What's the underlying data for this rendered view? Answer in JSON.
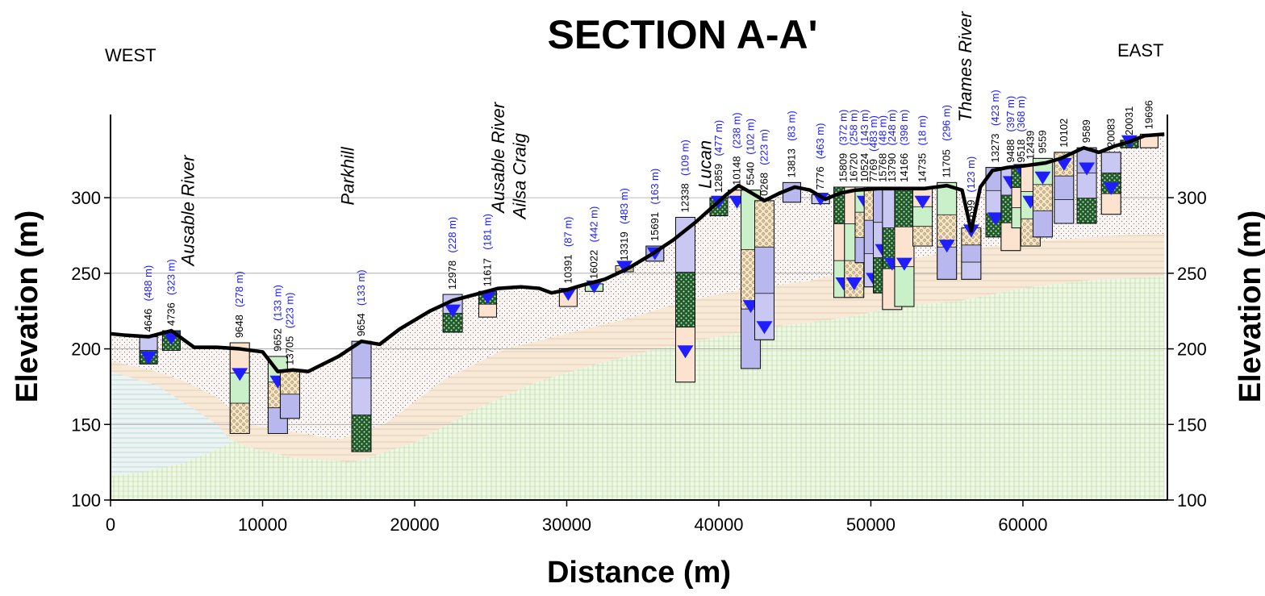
{
  "chart_data": {
    "type": "cross-section",
    "title": "SECTION A-A'",
    "west_label": "WEST",
    "east_label": "EAST",
    "xlabel": "Distance (m)",
    "ylabel": "Elevation (m)",
    "xlim": [
      0,
      69500
    ],
    "ylim": [
      100,
      355
    ],
    "x_ticks": [
      0,
      10000,
      20000,
      30000,
      40000,
      50000,
      60000
    ],
    "y_ticks": [
      100,
      150,
      200,
      250,
      300
    ],
    "grid": "horizontal",
    "surface": [
      [
        0,
        210
      ],
      [
        1000,
        209
      ],
      [
        2500,
        208
      ],
      [
        4000,
        212
      ],
      [
        5500,
        201
      ],
      [
        7000,
        201
      ],
      [
        8500,
        200
      ],
      [
        10000,
        198
      ],
      [
        11000,
        185
      ],
      [
        12000,
        186
      ],
      [
        13000,
        185
      ],
      [
        15000,
        195
      ],
      [
        16500,
        205
      ],
      [
        17700,
        203
      ],
      [
        19000,
        213
      ],
      [
        21000,
        225
      ],
      [
        22500,
        232
      ],
      [
        24000,
        236
      ],
      [
        25500,
        240
      ],
      [
        27000,
        241
      ],
      [
        28200,
        240
      ],
      [
        29000,
        237
      ],
      [
        30000,
        239
      ],
      [
        31000,
        242
      ],
      [
        32500,
        246
      ],
      [
        34000,
        253
      ],
      [
        35500,
        262
      ],
      [
        37000,
        272
      ],
      [
        38500,
        284
      ],
      [
        39500,
        293
      ],
      [
        40500,
        302
      ],
      [
        41300,
        308
      ],
      [
        42000,
        304
      ],
      [
        43000,
        298
      ],
      [
        44000,
        303
      ],
      [
        45000,
        307
      ],
      [
        46000,
        305
      ],
      [
        47000,
        299
      ],
      [
        48000,
        303
      ],
      [
        49000,
        305
      ],
      [
        50500,
        306
      ],
      [
        52000,
        306
      ],
      [
        53500,
        306
      ],
      [
        55000,
        308
      ],
      [
        56000,
        305
      ],
      [
        56600,
        278
      ],
      [
        57200,
        307
      ],
      [
        58000,
        318
      ],
      [
        59000,
        320
      ],
      [
        60000,
        321
      ],
      [
        61500,
        323
      ],
      [
        62500,
        326
      ],
      [
        64000,
        333
      ],
      [
        65000,
        330
      ],
      [
        66000,
        334
      ],
      [
        67000,
        337
      ],
      [
        68000,
        341
      ],
      [
        69300,
        342
      ]
    ],
    "boreholes": [
      {
        "id": "4646",
        "x": 2500,
        "top": 208,
        "bottom": 190,
        "distance": "(488 m)",
        "water": 194
      },
      {
        "id": "4736",
        "x": 4000,
        "top": 212,
        "bottom": 199,
        "distance": "(323 m)",
        "water": 207
      },
      {
        "id": "9648",
        "x": 8500,
        "top": 204,
        "bottom": 144,
        "distance": "(278 m)",
        "water": 183
      },
      {
        "id": "9652",
        "x": 11000,
        "top": 195,
        "bottom": 144,
        "distance": "(133 m)",
        "water": 178
      },
      {
        "id": "13705",
        "x": 11800,
        "top": 186,
        "bottom": 154,
        "distance": "(223 m)",
        "water": null
      },
      {
        "id": "9654",
        "x": 16500,
        "top": 205,
        "bottom": 132,
        "distance": "(133 m)",
        "water": null
      },
      {
        "id": "12978",
        "x": 22500,
        "top": 236,
        "bottom": 211,
        "distance": "(228 m)",
        "water": 225
      },
      {
        "id": "11617",
        "x": 24800,
        "top": 238,
        "bottom": 221,
        "distance": "(181 m)",
        "water": 234
      },
      {
        "id": "10391",
        "x": 30100,
        "top": 240,
        "bottom": 228,
        "distance": "(87 m)",
        "water": 236
      },
      {
        "id": "16022",
        "x": 31800,
        "top": 243,
        "bottom": 238,
        "distance": "(442 m)",
        "water": 241
      },
      {
        "id": "13319",
        "x": 33800,
        "top": 255,
        "bottom": 251,
        "distance": "(483 m)",
        "water": 254
      },
      {
        "id": "15691",
        "x": 35800,
        "top": 268,
        "bottom": 258,
        "distance": "(163 m)",
        "water": 263
      },
      {
        "id": "12338",
        "x": 37800,
        "top": 287,
        "bottom": 178,
        "distance": "(109 m)",
        "water": 198
      },
      {
        "id": "12859",
        "x": 40000,
        "top": 300,
        "bottom": 288,
        "distance": "(477 m)",
        "water": 297
      },
      {
        "id": "10148",
        "x": 41200,
        "top": 305,
        "bottom": 300,
        "distance": "(238 m)",
        "water": 297
      },
      {
        "id": "5540",
        "x": 42100,
        "top": 305,
        "bottom": 187,
        "distance": "(102 m)",
        "water": 228
      },
      {
        "id": "0268",
        "x": 43000,
        "top": 298,
        "bottom": 206,
        "distance": "(223 m)",
        "water": 214
      },
      {
        "id": "13813",
        "x": 44800,
        "top": 310,
        "bottom": 297,
        "distance": "(83 m)",
        "water": null
      },
      {
        "id": "7776",
        "x": 46700,
        "top": 302,
        "bottom": 296,
        "distance": "(463 m)",
        "water": 299
      },
      {
        "id": "15809",
        "x": 48200,
        "top": 307,
        "bottom": 234,
        "distance": "(372 m)",
        "water": 243
      },
      {
        "id": "16720",
        "x": 48900,
        "top": 307,
        "bottom": 234,
        "distance": "(258 m)",
        "water": 243
      },
      {
        "id": "10524",
        "x": 49600,
        "top": 307,
        "bottom": 257,
        "distance": "(143 m)",
        "water": 297
      },
      {
        "id": "7769",
        "x": 50200,
        "top": 307,
        "bottom": 241,
        "distance": "(483 m)",
        "water": 246
      },
      {
        "id": "15768",
        "x": 50800,
        "top": 307,
        "bottom": 237,
        "distance": "(48 m)",
        "water": 265
      },
      {
        "id": "13790",
        "x": 51400,
        "top": 307,
        "bottom": 226,
        "distance": "(248 m)",
        "water": 256
      },
      {
        "id": "14166",
        "x": 52200,
        "top": 307,
        "bottom": 228,
        "distance": "(398 m)",
        "water": 256
      },
      {
        "id": "14735",
        "x": 53400,
        "top": 307,
        "bottom": 268,
        "distance": "(18 m)",
        "water": 297
      },
      {
        "id": "11705",
        "x": 55000,
        "top": 310,
        "bottom": 246,
        "distance": "(296 m)",
        "water": 268
      },
      {
        "id": "1699",
        "x": 56600,
        "top": 280,
        "bottom": 246,
        "distance": "(123 m)",
        "water": 278
      },
      {
        "id": "13273",
        "x": 58200,
        "top": 320,
        "bottom": 274,
        "distance": "(423 m)",
        "water": 286
      },
      {
        "id": "9488",
        "x": 59200,
        "top": 320,
        "bottom": 265,
        "distance": "(397 m)",
        "water": 310
      },
      {
        "id": "9518",
        "x": 59900,
        "top": 320,
        "bottom": 280,
        "distance": "(368 m)",
        "water": 318
      },
      {
        "id": "12439",
        "x": 60500,
        "top": 322,
        "bottom": 268,
        "distance": "",
        "water": 297
      },
      {
        "id": "9559",
        "x": 61300,
        "top": 326,
        "bottom": 274,
        "distance": "",
        "water": 313
      },
      {
        "id": "10102",
        "x": 62700,
        "top": 330,
        "bottom": 283,
        "distance": "",
        "water": 322
      },
      {
        "id": "9589",
        "x": 64200,
        "top": 333,
        "bottom": 283,
        "distance": "",
        "water": 319
      },
      {
        "id": "20083",
        "x": 65800,
        "top": 330,
        "bottom": 289,
        "distance": "",
        "water": 306
      },
      {
        "id": "20031",
        "x": 67000,
        "top": 338,
        "bottom": 333,
        "distance": "",
        "water": 337
      },
      {
        "id": "19696",
        "x": 68300,
        "top": 342,
        "bottom": 333,
        "distance": "",
        "water": null
      }
    ],
    "place_labels": [
      {
        "text": "Ausable River",
        "x": 5500,
        "y": 255
      },
      {
        "text": "Parkhill",
        "x": 16000,
        "y": 295
      },
      {
        "text": "Ausable River",
        "x": 25900,
        "y": 290
      },
      {
        "text": "Ailsa Craig",
        "x": 27300,
        "y": 286
      },
      {
        "text": "Lucan",
        "x": 39500,
        "y": 306
      },
      {
        "text": "Thames River",
        "x": 56600,
        "y": 350
      }
    ]
  }
}
